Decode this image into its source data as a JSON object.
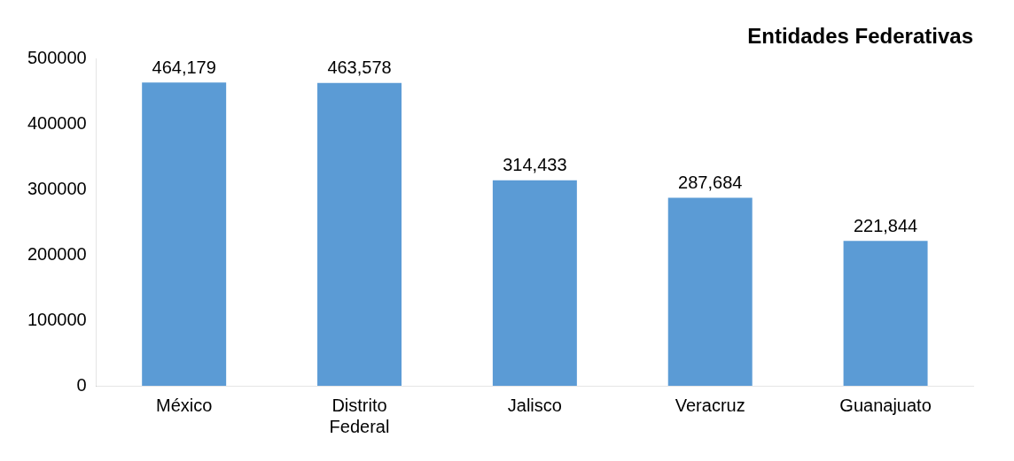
{
  "chart_data": {
    "type": "bar",
    "title": "Entidades Federativas",
    "categories": [
      "México",
      "Distrito Federal",
      "Jalisco",
      "Veracruz",
      "Guanajuato"
    ],
    "values": [
      464179,
      463578,
      314433,
      287684,
      221844
    ],
    "value_labels": [
      "464,179",
      "463,578",
      "314,433",
      "287,684",
      "221,844"
    ],
    "color": "#5b9bd5",
    "ylim": [
      0,
      500000
    ],
    "yticks": [
      0,
      100000,
      200000,
      300000,
      400000,
      500000
    ],
    "grid": false
  }
}
